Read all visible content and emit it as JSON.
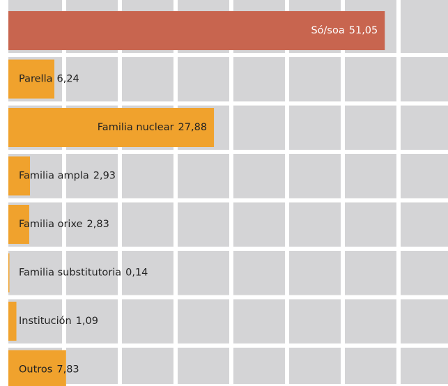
{
  "chart_data": {
    "type": "hbar",
    "categories": [
      "Só/soa",
      "Parella",
      "Familia nuclear",
      "Familia ampla",
      "Familia orixe",
      "Familia substitutoria",
      "Institución",
      "Outros"
    ],
    "values": [
      51.05,
      6.24,
      27.88,
      2.93,
      2.83,
      0.14,
      1.09,
      7.83
    ],
    "value_labels": [
      "51,05",
      "6,24",
      "27,88",
      "2,93",
      "2,83",
      "0,14",
      "1,09",
      "7,83"
    ],
    "colors": [
      "#c8654f",
      "#f0a22d",
      "#f0a22d",
      "#f0a22d",
      "#f0a22d",
      "#f0a22d",
      "#f0a22d",
      "#f0a22d"
    ],
    "xlim": [
      0,
      60
    ]
  }
}
